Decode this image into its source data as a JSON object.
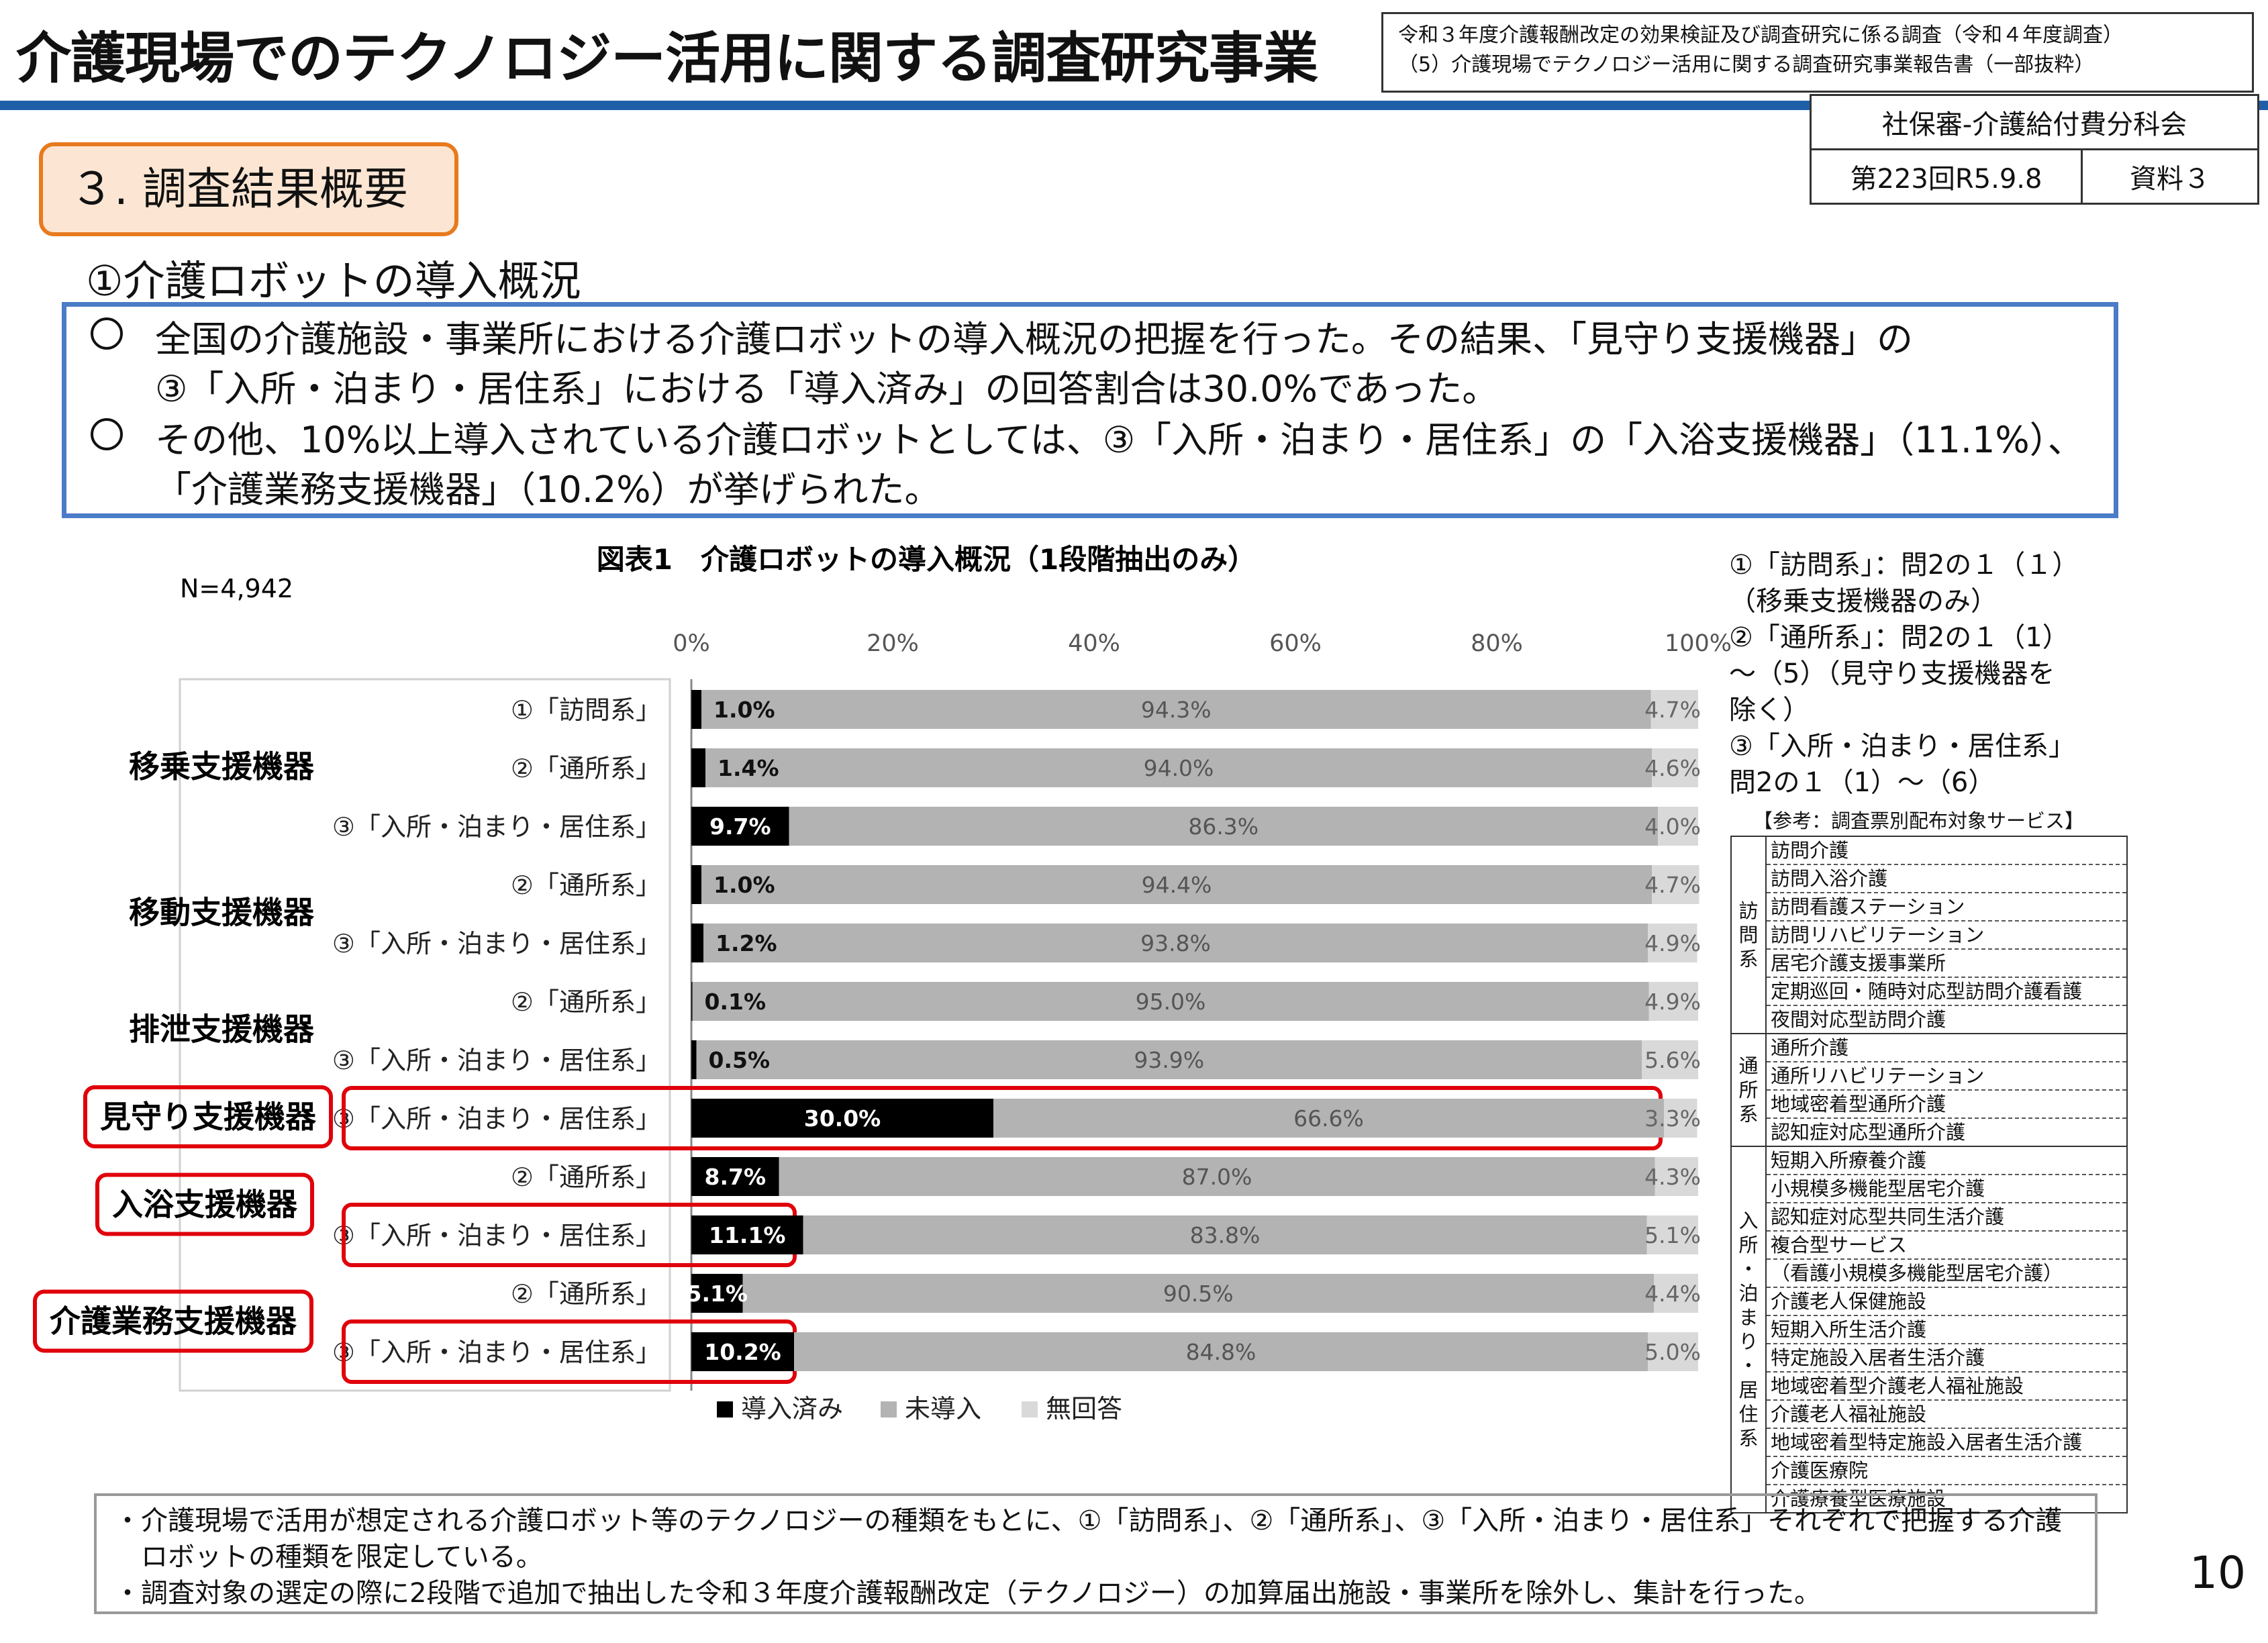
{
  "header": {
    "title": "介護現場でのテクノロジー活用に関する調査研究事業",
    "source_line1": "令和３年度介護報酬改定の効果検証及び調査研究に係る調査（令和４年度調査）",
    "source_line2": "（5）介護現場でテクノロジー活用に関する調査研究事業報告書（一部抜粋）",
    "meeting_name": "社保審-介護給付費分科会",
    "meeting_date": "第223回R5.9.8",
    "document_no": "資料３",
    "accent_color": "#1f5fa8"
  },
  "section": {
    "tag": "３. 調査結果概要",
    "subtitle": "①介護ロボットの導入概況"
  },
  "summary": {
    "line1": "全国の介護施設・事業所における介護ロボットの導入概況の把握を行った。その結果、「見守り支援機器」の",
    "line2": "③「入所・泊まり・居住系」における「導入済み」の回答割合は30.0%であった。",
    "line3": "その他、10%以上導入されている介護ロボットとしては、③「入所・泊まり・居住系」の「入浴支援機器」（11.1%）、",
    "line4": "「介護業務支援機器」（10.2%）が挙げられた。"
  },
  "chart_data": {
    "type": "bar",
    "orientation": "horizontal",
    "stacked": true,
    "title": "図表1　介護ロボットの導入概況（1段階抽出のみ）",
    "n_label": "N=4,942",
    "xlim": [
      0,
      100
    ],
    "x_ticks": [
      "0%",
      "20%",
      "40%",
      "60%",
      "80%",
      "100%"
    ],
    "legend": {
      "position": "bottom",
      "labels": [
        "導入済み",
        "未導入",
        "無回答"
      ]
    },
    "colors": {
      "導入済み": "#000000",
      "未導入": "#b3b3b3",
      "無回答": "#d9d9d9"
    },
    "groups": [
      {
        "name": "移乗支援機器",
        "highlight": false
      },
      {
        "name": "移動支援機器",
        "highlight": false
      },
      {
        "name": "排泄支援機器",
        "highlight": false
      },
      {
        "name": "見守り支援機器",
        "highlight": true
      },
      {
        "name": "入浴支援機器",
        "highlight": true
      },
      {
        "name": "介護業務支援機器",
        "highlight": true
      }
    ],
    "rows": [
      {
        "group": "移乗支援機器",
        "label": "①「訪問系」",
        "values": [
          1.0,
          94.3,
          4.7
        ],
        "labels": [
          "1.0%",
          "94.3%",
          "4.7%"
        ],
        "highlight": false
      },
      {
        "group": "移乗支援機器",
        "label": "②「通所系」",
        "values": [
          1.4,
          94.0,
          4.6
        ],
        "labels": [
          "1.4%",
          "94.0%",
          "4.6%"
        ],
        "highlight": false
      },
      {
        "group": "移乗支援機器",
        "label": "③「入所・泊まり・居住系」",
        "values": [
          9.7,
          86.3,
          4.0
        ],
        "labels": [
          "9.7%",
          "86.3%",
          "4.0%"
        ],
        "highlight": false
      },
      {
        "group": "移動支援機器",
        "label": "②「通所系」",
        "values": [
          1.0,
          94.4,
          4.7
        ],
        "labels": [
          "1.0%",
          "94.4%",
          "4.7%"
        ],
        "highlight": false
      },
      {
        "group": "移動支援機器",
        "label": "③「入所・泊まり・居住系」",
        "values": [
          1.2,
          93.8,
          4.9
        ],
        "labels": [
          "1.2%",
          "93.8%",
          "4.9%"
        ],
        "highlight": false
      },
      {
        "group": "排泄支援機器",
        "label": "②「通所系」",
        "values": [
          0.1,
          95.0,
          4.9
        ],
        "labels": [
          "0.1%",
          "95.0%",
          "4.9%"
        ],
        "highlight": false
      },
      {
        "group": "排泄支援機器",
        "label": "③「入所・泊まり・居住系」",
        "values": [
          0.5,
          93.9,
          5.6
        ],
        "labels": [
          "0.5%",
          "93.9%",
          "5.6%"
        ],
        "highlight": false
      },
      {
        "group": "見守り支援機器",
        "label": "③「入所・泊まり・居住系」",
        "values": [
          30.0,
          66.6,
          3.3
        ],
        "labels": [
          "30.0%",
          "66.6%",
          "3.3%"
        ],
        "highlight": true
      },
      {
        "group": "入浴支援機器",
        "label": "②「通所系」",
        "values": [
          8.7,
          87.0,
          4.3
        ],
        "labels": [
          "8.7%",
          "87.0%",
          "4.3%"
        ],
        "highlight": false
      },
      {
        "group": "入浴支援機器",
        "label": "③「入所・泊まり・居住系」",
        "values": [
          11.1,
          83.8,
          5.1
        ],
        "labels": [
          "11.1%",
          "83.8%",
          "5.1%"
        ],
        "highlight": true
      },
      {
        "group": "介護業務支援機器",
        "label": "②「通所系」",
        "values": [
          5.1,
          90.5,
          4.4
        ],
        "labels": [
          "5.1%",
          "90.5%",
          "4.4%"
        ],
        "highlight": false
      },
      {
        "group": "介護業務支援機器",
        "label": "③「入所・泊まり・居住系」",
        "values": [
          10.2,
          84.8,
          5.0
        ],
        "labels": [
          "10.2%",
          "84.8%",
          "5.0%"
        ],
        "highlight": true
      }
    ],
    "highlight_color": "#e0000b"
  },
  "notes": {
    "lines": [
      "①「訪問系」：問2の１（１）",
      "（移乗支援機器のみ）",
      "②「通所系」：問2の１（1）",
      "～（5）（見守り支援機器を",
      "除く）",
      "③「入所・泊まり・居住系」",
      "問2の１（1）～（6）"
    ],
    "reference_caption": "【参考：調査票別配布対象サービス】",
    "service_groups": [
      {
        "group": "訪問系",
        "items": [
          "訪問介護",
          "訪問入浴介護",
          "訪問看護ステーション",
          "訪問リハビリテーション",
          "居宅介護支援事業所",
          "定期巡回・随時対応型訪問介護看護",
          "夜間対応型訪問介護"
        ]
      },
      {
        "group": "通所系",
        "items": [
          "通所介護",
          "通所リハビリテーション",
          "地域密着型通所介護",
          "認知症対応型通所介護"
        ]
      },
      {
        "group": "入所・泊まり・居住系",
        "items": [
          "短期入所療養介護",
          "小規模多機能型居宅介護",
          "認知症対応型共同生活介護",
          "複合型サービス",
          "（看護小規模多機能型居宅介護）",
          "介護老人保健施設",
          "短期入所生活介護",
          "特定施設入居者生活介護",
          "地域密着型介護老人福祉施設",
          "介護老人福祉施設",
          "地域密着型特定施設入居者生活介護",
          "介護医療院",
          "介護療養型医療施設"
        ]
      }
    ]
  },
  "footnotes": {
    "line1": "・介護現場で活用が想定される介護ロボット等のテクノロジーの種類をもとに、①「訪問系」、②「通所系」、③「入所・泊まり・居住系」それぞれで把握する介護",
    "line2": "ロボットの種類を限定している。",
    "line3": "・調査対象の選定の際に2段階で追加で抽出した令和３年度介護報酬改定（テクノロジー）の加算届出施設・事業所を除外し、集計を行った。"
  },
  "page_number": "10"
}
